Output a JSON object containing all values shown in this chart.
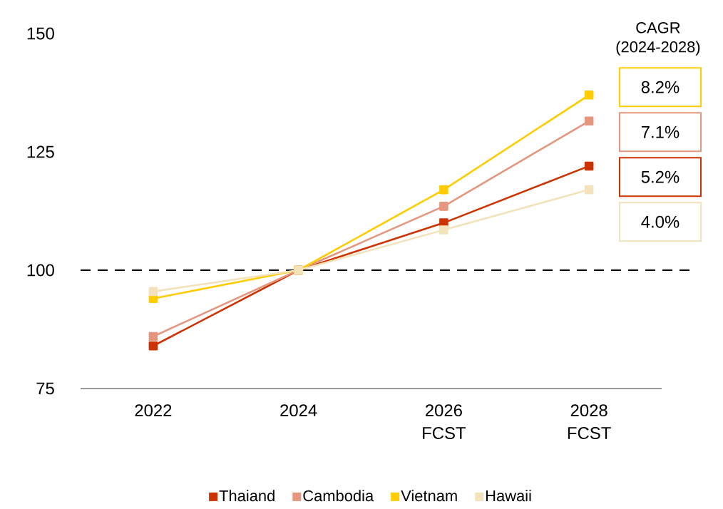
{
  "chart_data": {
    "type": "line",
    "categories": [
      "2022",
      "2024",
      "2026 FCST",
      "2028 FCST"
    ],
    "series": [
      {
        "name": "Thaiand",
        "color": "#cc3300",
        "values": [
          84,
          100,
          110,
          122
        ]
      },
      {
        "name": "Cambodia",
        "color": "#e5967e",
        "values": [
          86,
          100,
          113.5,
          131.5
        ]
      },
      {
        "name": "Vietnam",
        "color": "#ffcc00",
        "values": [
          94,
          100,
          117,
          137
        ]
      },
      {
        "name": "Hawaii",
        "color": "#f3e3bd",
        "values": [
          95.5,
          100,
          108.5,
          117
        ]
      }
    ],
    "ylim": [
      75,
      150
    ],
    "yticks": [
      75,
      100,
      125,
      150
    ],
    "ref_lines": [
      {
        "axis": "y",
        "value": 100,
        "line_style": "dashed",
        "color": "#000000"
      }
    ],
    "annotations": [
      "CAGR (2024-2028)",
      "8.2%",
      "7.1%",
      "5.2%",
      "4.0%"
    ],
    "marker": "square",
    "line_style": "solid",
    "legend": "bottom",
    "grid": false
  }
}
